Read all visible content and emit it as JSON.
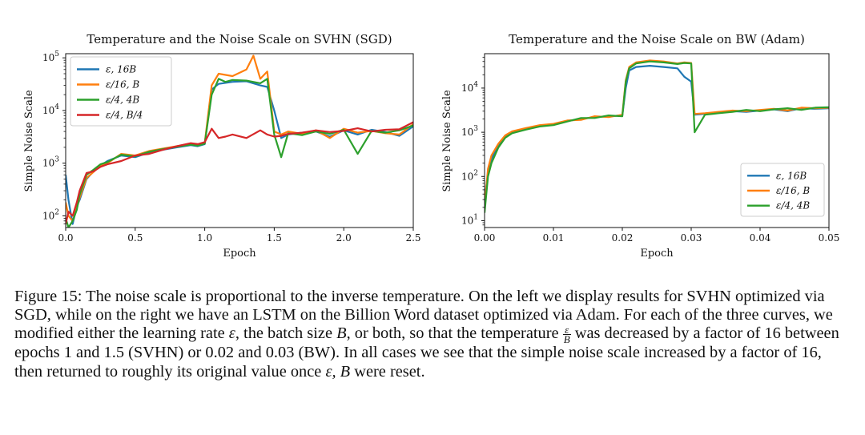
{
  "chart_data": [
    {
      "type": "line",
      "id": "svhn",
      "title": "Temperature and the Noise Scale on SVHN (SGD)",
      "xlabel": "Epoch",
      "ylabel": "Simple Noise Scale",
      "xlim": [
        0,
        2.5
      ],
      "ylim": [
        60,
        120000
      ],
      "yscale": "log",
      "xticks": [
        0.0,
        0.5,
        1.0,
        1.5,
        2.0,
        2.5
      ],
      "xtick_labels": [
        "0.0",
        "0.5",
        "1.0",
        "1.5",
        "2.0",
        "2.5"
      ],
      "yticks": [
        100,
        1000,
        10000,
        100000
      ],
      "ytick_labels": [
        {
          "base": "10",
          "exp": "2"
        },
        {
          "base": "10",
          "exp": "3"
        },
        {
          "base": "10",
          "exp": "4"
        },
        {
          "base": "10",
          "exp": "5"
        }
      ],
      "legend_position": "upper-left",
      "series": [
        {
          "name": "ε, 16B",
          "color": "#1f77b4",
          "x": [
            0.0,
            0.02,
            0.05,
            0.08,
            0.1,
            0.15,
            0.2,
            0.25,
            0.3,
            0.4,
            0.5,
            0.6,
            0.7,
            0.8,
            0.9,
            0.95,
            1.0,
            1.05,
            1.1,
            1.2,
            1.3,
            1.4,
            1.45,
            1.5,
            1.55,
            1.6,
            1.7,
            1.8,
            1.9,
            2.0,
            2.1,
            2.2,
            2.3,
            2.4,
            2.5
          ],
          "values": [
            600,
            200,
            70,
            150,
            200,
            500,
            700,
            900,
            1100,
            1400,
            1300,
            1600,
            1800,
            2000,
            2200,
            2100,
            2300,
            25000,
            32000,
            35000,
            36000,
            30000,
            28000,
            10000,
            3000,
            3500,
            3800,
            4000,
            3200,
            4200,
            3500,
            4300,
            3900,
            3300,
            5000
          ]
        },
        {
          "name": "ε/16, B",
          "color": "#ff7f0e",
          "x": [
            0.0,
            0.02,
            0.05,
            0.08,
            0.1,
            0.15,
            0.2,
            0.25,
            0.3,
            0.4,
            0.5,
            0.6,
            0.7,
            0.8,
            0.9,
            0.95,
            1.0,
            1.05,
            1.1,
            1.2,
            1.3,
            1.35,
            1.4,
            1.45,
            1.5,
            1.55,
            1.6,
            1.7,
            1.8,
            1.9,
            2.0,
            2.1,
            2.2,
            2.3,
            2.4,
            2.5
          ],
          "values": [
            180,
            100,
            80,
            140,
            220,
            520,
            680,
            900,
            1000,
            1500,
            1400,
            1700,
            1900,
            2100,
            2300,
            2200,
            2400,
            30000,
            50000,
            45000,
            60000,
            110000,
            40000,
            55000,
            4000,
            3500,
            4000,
            3600,
            4200,
            3000,
            4500,
            3800,
            4100,
            3700,
            3500,
            5500
          ]
        },
        {
          "name": "ε/4, 4B",
          "color": "#2ca02c",
          "x": [
            0.0,
            0.02,
            0.05,
            0.08,
            0.1,
            0.15,
            0.2,
            0.25,
            0.3,
            0.4,
            0.5,
            0.6,
            0.7,
            0.8,
            0.9,
            0.95,
            1.0,
            1.05,
            1.1,
            1.15,
            1.2,
            1.3,
            1.4,
            1.45,
            1.5,
            1.55,
            1.6,
            1.7,
            1.8,
            1.9,
            2.0,
            2.1,
            2.2,
            2.3,
            2.4,
            2.5
          ],
          "values": [
            90,
            60,
            80,
            130,
            250,
            600,
            750,
            950,
            1050,
            1450,
            1350,
            1650,
            1850,
            2050,
            2250,
            2150,
            2350,
            20000,
            40000,
            35000,
            38000,
            37000,
            33000,
            40000,
            3500,
            1300,
            3700,
            3400,
            4000,
            3600,
            4300,
            1500,
            4100,
            3800,
            4200,
            5200
          ]
        },
        {
          "name": "ε/4, B/4",
          "color": "#d62728",
          "x": [
            0.0,
            0.02,
            0.05,
            0.08,
            0.1,
            0.15,
            0.2,
            0.25,
            0.3,
            0.4,
            0.5,
            0.6,
            0.7,
            0.8,
            0.9,
            0.95,
            1.0,
            1.05,
            1.1,
            1.15,
            1.2,
            1.3,
            1.4,
            1.45,
            1.5,
            1.55,
            1.6,
            1.7,
            1.8,
            1.9,
            2.0,
            2.1,
            2.2,
            2.3,
            2.4,
            2.5
          ],
          "values": [
            70,
            120,
            100,
            180,
            300,
            650,
            700,
            850,
            950,
            1100,
            1400,
            1500,
            1800,
            2100,
            2400,
            2300,
            2500,
            4500,
            3000,
            3200,
            3500,
            3000,
            4200,
            3500,
            3200,
            3300,
            3600,
            3800,
            4200,
            3900,
            4100,
            4600,
            4000,
            4300,
            4400,
            6000
          ]
        }
      ]
    },
    {
      "type": "line",
      "id": "bw",
      "title": "Temperature and the Noise Scale on BW (Adam)",
      "xlabel": "Epoch",
      "ylabel": "Simple Noise Scale",
      "xlim": [
        0,
        0.05
      ],
      "ylim": [
        7,
        60000
      ],
      "yscale": "log",
      "xticks": [
        0.0,
        0.01,
        0.02,
        0.03,
        0.04,
        0.05
      ],
      "xtick_labels": [
        "0.00",
        "0.01",
        "0.02",
        "0.03",
        "0.04",
        "0.05"
      ],
      "yticks": [
        10,
        100,
        1000,
        10000
      ],
      "ytick_labels": [
        {
          "base": "10",
          "exp": "1"
        },
        {
          "base": "10",
          "exp": "2"
        },
        {
          "base": "10",
          "exp": "3"
        },
        {
          "base": "10",
          "exp": "4"
        }
      ],
      "legend_position": "lower-right",
      "series": [
        {
          "name": "ε, 16B",
          "color": "#1f77b4",
          "x": [
            0.0,
            0.0005,
            0.001,
            0.002,
            0.003,
            0.004,
            0.006,
            0.008,
            0.01,
            0.012,
            0.014,
            0.016,
            0.018,
            0.02,
            0.0205,
            0.021,
            0.022,
            0.024,
            0.026,
            0.028,
            0.029,
            0.03,
            0.0305,
            0.032,
            0.034,
            0.036,
            0.038,
            0.04,
            0.042,
            0.044,
            0.046,
            0.048,
            0.05
          ],
          "values": [
            30,
            120,
            250,
            500,
            800,
            1000,
            1200,
            1400,
            1500,
            1800,
            2000,
            2200,
            2300,
            2400,
            10000,
            25000,
            30000,
            32000,
            30000,
            28000,
            18000,
            14000,
            2500,
            2600,
            2800,
            3000,
            2900,
            3100,
            3300,
            3000,
            3500,
            3400,
            3500
          ]
        },
        {
          "name": "ε/16, B",
          "color": "#ff7f0e",
          "x": [
            0.0,
            0.0005,
            0.001,
            0.002,
            0.003,
            0.004,
            0.006,
            0.008,
            0.01,
            0.012,
            0.014,
            0.016,
            0.018,
            0.02,
            0.0205,
            0.021,
            0.022,
            0.024,
            0.026,
            0.028,
            0.029,
            0.03,
            0.0305,
            0.032,
            0.034,
            0.036,
            0.038,
            0.04,
            0.042,
            0.044,
            0.046,
            0.048,
            0.05
          ],
          "values": [
            20,
            150,
            300,
            550,
            850,
            1050,
            1250,
            1450,
            1550,
            1850,
            1900,
            2300,
            2200,
            2500,
            15000,
            30000,
            38000,
            42000,
            40000,
            36000,
            38000,
            37000,
            2600,
            2700,
            2900,
            3100,
            3000,
            3200,
            3400,
            3100,
            3600,
            3500,
            3600
          ]
        },
        {
          "name": "ε/4, 4B",
          "color": "#2ca02c",
          "x": [
            0.0,
            0.0005,
            0.001,
            0.002,
            0.003,
            0.004,
            0.006,
            0.008,
            0.01,
            0.012,
            0.014,
            0.016,
            0.018,
            0.02,
            0.0205,
            0.021,
            0.022,
            0.024,
            0.026,
            0.028,
            0.029,
            0.03,
            0.0305,
            0.032,
            0.034,
            0.036,
            0.038,
            0.04,
            0.042,
            0.044,
            0.046,
            0.048,
            0.05
          ],
          "values": [
            15,
            100,
            200,
            450,
            750,
            950,
            1150,
            1350,
            1450,
            1750,
            2100,
            2100,
            2400,
            2300,
            14000,
            28000,
            36000,
            40000,
            38000,
            35000,
            37000,
            36000,
            1000,
            2500,
            2700,
            2900,
            3200,
            3000,
            3300,
            3500,
            3200,
            3600,
            3700
          ]
        }
      ]
    }
  ],
  "caption": {
    "p1": "Figure 15: The noise scale is proportional to the inverse temperature. On the left we display results for SVHN optimized via SGD, while on the right we have an LSTM on the Billion Word dataset optimized via Adam. For each of the three curves, we modified either the learning rate ",
    "p2": ", the batch size ",
    "p3": ", or both, so that the temperature ",
    "p4": " was decreased by a factor of 16 between epochs 1 and 1.5 (SVHN) or 0.02 and 0.03 (BW). In all cases we see that the simple noise scale increased by a factor of 16, then returned to roughly its original value once ",
    "p5": " were reset.",
    "eps": "ε",
    "B": "B",
    "frac_num": "ε",
    "frac_den": "B",
    "eps_B": "ε, B"
  }
}
